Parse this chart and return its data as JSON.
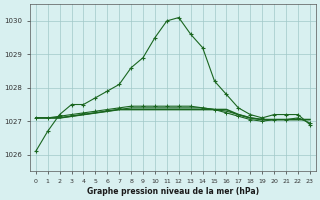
{
  "title": "Graphe pression niveau de la mer (hPa)",
  "background_color": "#d8f0f0",
  "grid_color": "#a0c8c8",
  "line_color": "#1a6620",
  "x_labels": [
    "0",
    "1",
    "2",
    "3",
    "4",
    "5",
    "6",
    "7",
    "8",
    "9",
    "10",
    "11",
    "12",
    "13",
    "14",
    "15",
    "16",
    "17",
    "18",
    "19",
    "20",
    "21",
    "22",
    "23"
  ],
  "ylim": [
    1025.5,
    1030.5
  ],
  "yticks": [
    1026,
    1027,
    1028,
    1029,
    1030
  ],
  "series1": [
    1026.1,
    1026.7,
    1027.2,
    1027.5,
    1027.5,
    1027.7,
    1027.9,
    1028.1,
    1028.6,
    1028.9,
    1029.5,
    1030.0,
    1030.1,
    1029.6,
    1029.2,
    1028.2,
    1027.8,
    1027.4,
    1027.2,
    1027.1,
    1027.2,
    1027.2,
    1027.2,
    1026.9
  ],
  "series2": [
    1027.1,
    1027.1,
    1027.1,
    1027.15,
    1027.2,
    1027.25,
    1027.3,
    1027.35,
    1027.35,
    1027.35,
    1027.35,
    1027.35,
    1027.35,
    1027.35,
    1027.35,
    1027.35,
    1027.35,
    1027.2,
    1027.1,
    1027.05,
    1027.05,
    1027.05,
    1027.05,
    1027.05
  ],
  "series3": [
    1027.1,
    1027.1,
    1027.1,
    1027.15,
    1027.2,
    1027.25,
    1027.3,
    1027.35,
    1027.4,
    1027.4,
    1027.4,
    1027.4,
    1027.4,
    1027.4,
    1027.4,
    1027.35,
    1027.3,
    1027.2,
    1027.1,
    1027.05,
    1027.05,
    1027.05,
    1027.05,
    1027.05
  ],
  "series4": [
    1027.1,
    1027.1,
    1027.15,
    1027.2,
    1027.25,
    1027.3,
    1027.35,
    1027.4,
    1027.45,
    1027.45,
    1027.45,
    1027.45,
    1027.45,
    1027.45,
    1027.4,
    1027.35,
    1027.25,
    1027.15,
    1027.05,
    1027.0,
    1027.05,
    1027.05,
    1027.1,
    1026.95
  ]
}
